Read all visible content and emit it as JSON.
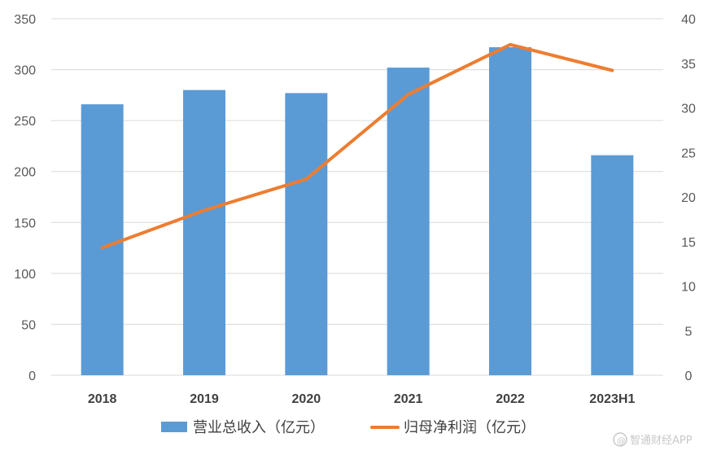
{
  "chart_data": {
    "type": "bar",
    "categories": [
      "2018",
      "2019",
      "2020",
      "2021",
      "2022",
      "2023H1"
    ],
    "series": [
      {
        "name": "营业总收入（亿元）",
        "type": "bar",
        "axis": "left",
        "values": [
          266,
          280,
          277,
          302,
          322,
          216
        ]
      },
      {
        "name": "归母净利润（亿元）",
        "type": "line",
        "axis": "right",
        "values": [
          14.3,
          18.5,
          22.0,
          31.5,
          37.1,
          34.2
        ]
      }
    ],
    "title": "",
    "xlabel": "",
    "ylabel": "",
    "ylim": [
      0,
      350
    ],
    "yticks": [
      "0",
      "50",
      "100",
      "150",
      "200",
      "250",
      "300",
      "350"
    ],
    "y2lim": [
      0,
      40
    ],
    "y2ticks": [
      "0",
      "5",
      "10",
      "15",
      "20",
      "25",
      "30",
      "35",
      "40"
    ],
    "grid": true,
    "legend": "bottom",
    "colors": {
      "bar": "#5b9bd5",
      "line": "#ed7d31",
      "grid": "#d9d9d9"
    }
  },
  "watermark": {
    "icon": "smart-finance-logo-icon",
    "text": "智通财经APP"
  }
}
